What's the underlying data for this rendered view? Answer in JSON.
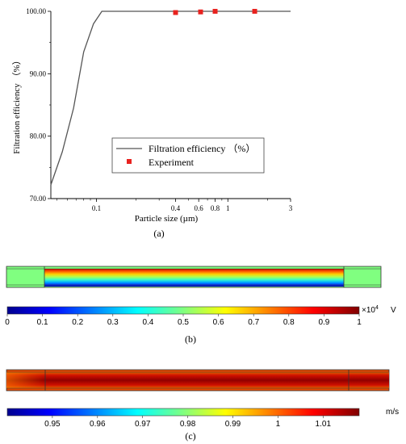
{
  "panel_a": {
    "caption": "(a)",
    "chart_data": {
      "type": "line",
      "xlabel": "Particle size (µm)",
      "ylabel": "Filtration efficiency （%）",
      "x_scale": "log",
      "xlim": [
        0.045,
        3
      ],
      "ylim": [
        70,
        100
      ],
      "x_ticks": [
        {
          "value": 0.1,
          "label": "0.1"
        },
        {
          "value": 0.4,
          "label": "0.4"
        },
        {
          "value": 0.6,
          "label": "0.6"
        },
        {
          "value": 0.8,
          "label": "0.8"
        },
        {
          "value": 1,
          "label": "1"
        },
        {
          "value": 3,
          "label": "3"
        }
      ],
      "y_ticks": [
        {
          "value": 70,
          "label": "70.00"
        },
        {
          "value": 80,
          "label": "80.00"
        },
        {
          "value": 90,
          "label": "90.00"
        },
        {
          "value": 100,
          "label": "100.00"
        }
      ],
      "legend_position": "bottom-right",
      "series": [
        {
          "name": "Filtration efficiency （%）",
          "type": "line",
          "color": "#555555",
          "x": [
            0.045,
            0.055,
            0.067,
            0.08,
            0.095,
            0.11,
            0.125,
            0.14,
            0.5,
            1,
            2,
            3
          ],
          "y": [
            72.2,
            77.5,
            84.5,
            93.5,
            98,
            100,
            100,
            100,
            100,
            100,
            100,
            100
          ]
        },
        {
          "name": "Experiment",
          "type": "scatter",
          "color": "#e8221f",
          "x": [
            0.4,
            0.62,
            0.8,
            1.6
          ],
          "y": [
            99.8,
            99.9,
            100,
            100
          ]
        }
      ]
    }
  },
  "panel_b": {
    "caption": "(b)",
    "chart_data": {
      "type": "heatmap",
      "colorbar": {
        "min": 0,
        "max": 1,
        "ticks": [
          "0",
          "0.1",
          "0.2",
          "0.3",
          "0.4",
          "0.5",
          "0.6",
          "0.7",
          "0.8",
          "0.9",
          "1"
        ],
        "multiplier": "×10",
        "multiplier_exp": "4",
        "unit": "V"
      }
    }
  },
  "panel_c": {
    "caption": "(c)",
    "chart_data": {
      "type": "heatmap",
      "colorbar": {
        "min": 0.94,
        "max": 1.018,
        "ticks": [
          "0.95",
          "0.96",
          "0.97",
          "0.98",
          "0.99",
          "1",
          "1.01"
        ],
        "unit": "m/s"
      }
    }
  }
}
